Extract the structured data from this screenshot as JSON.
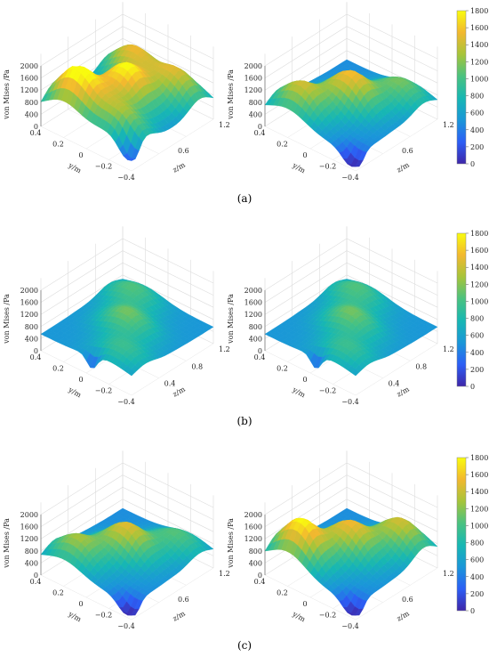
{
  "chart_data": [
    {
      "type": "surface",
      "panel": "a",
      "position": "left",
      "xlabel": "y/m",
      "ylabel": "z/m",
      "zlabel": "von Mises /Pa",
      "xticks": [
        "0.4",
        "0.2",
        "0",
        "−0.2",
        "−0.4"
      ],
      "yticks": [
        "0.6",
        "1.2"
      ],
      "zticks": [
        "0",
        "400",
        "800",
        "1200",
        "1600",
        "2000"
      ],
      "zlim": [
        0,
        2000
      ],
      "peaks": [
        {
          "y": 0.0,
          "z": 0.6,
          "vm": 1850
        },
        {
          "y": -0.2,
          "z": 1.0,
          "vm": 1500
        },
        {
          "y": 0.2,
          "z": 1.0,
          "vm": 1550
        },
        {
          "y": 0.2,
          "z": 0.2,
          "vm": 2000
        },
        {
          "y": -0.2,
          "z": 0.2,
          "vm": 1300
        }
      ]
    },
    {
      "type": "surface",
      "panel": "a",
      "position": "right",
      "xlabel": "y/m",
      "ylabel": "z/m",
      "zlabel": "von Mises /Pa",
      "xticks": [
        "0.4",
        "0.2",
        "0",
        "−0.2",
        "−0.4"
      ],
      "yticks": [
        "0.6",
        "1.2"
      ],
      "zticks": [
        "0",
        "400",
        "800",
        "1200",
        "1600",
        "2000"
      ],
      "zlim": [
        0,
        2000
      ],
      "peaks": [
        {
          "y": 0.0,
          "z": 0.6,
          "vm": 1650
        },
        {
          "y": 0.2,
          "z": 0.2,
          "vm": 1500
        },
        {
          "y": -0.2,
          "z": 1.0,
          "vm": 1200
        }
      ]
    },
    {
      "type": "surface",
      "panel": "b",
      "position": "left",
      "xlabel": "y/m",
      "ylabel": "z/m",
      "zlabel": "von Mises /Pa",
      "xticks": [
        "0.4",
        "0.2",
        "0",
        "−0.2",
        "−0.4"
      ],
      "yticks": [
        "0.4",
        "0.8",
        "1.2"
      ],
      "zticks": [
        "0",
        "400",
        "800",
        "1200",
        "1600",
        "2000"
      ],
      "zlim": [
        0,
        2000
      ],
      "peaks": [
        {
          "y": 0.0,
          "z": 0.6,
          "vm": 1200
        },
        {
          "y": 0.2,
          "z": 1.0,
          "vm": 1100
        },
        {
          "y": -0.2,
          "z": 0.2,
          "vm": 1000
        }
      ]
    },
    {
      "type": "surface",
      "panel": "b",
      "position": "right",
      "xlabel": "y/m",
      "ylabel": "z/m",
      "zlabel": "von Mises /Pa",
      "xticks": [
        "0.4",
        "0.2",
        "0",
        "−0.2",
        "−0.4"
      ],
      "yticks": [
        "0.4",
        "0.8",
        "1.2"
      ],
      "zticks": [
        "0",
        "400",
        "800",
        "1200",
        "1600",
        "2000"
      ],
      "zlim": [
        0,
        2000
      ],
      "peaks": [
        {
          "y": 0.0,
          "z": 0.6,
          "vm": 1200
        },
        {
          "y": 0.2,
          "z": 1.0,
          "vm": 1100
        },
        {
          "y": -0.2,
          "z": 0.2,
          "vm": 1000
        }
      ]
    },
    {
      "type": "surface",
      "panel": "c",
      "position": "left",
      "xlabel": "y/m",
      "ylabel": "z/m",
      "zlabel": "von Mises /Pa",
      "xticks": [
        "0.4",
        "0.2",
        "0",
        "−0.2",
        "−0.4"
      ],
      "yticks": [
        "0.6",
        "1.2"
      ],
      "zticks": [
        "0",
        "400",
        "800",
        "1200",
        "1600",
        "2000"
      ],
      "zlim": [
        0,
        2000
      ],
      "peaks": [
        {
          "y": 0.0,
          "z": 0.6,
          "vm": 1550
        },
        {
          "y": 0.2,
          "z": 0.2,
          "vm": 1350
        },
        {
          "y": -0.2,
          "z": 1.0,
          "vm": 1100
        }
      ]
    },
    {
      "type": "surface",
      "panel": "c",
      "position": "right",
      "xlabel": "y/m",
      "ylabel": "z/m",
      "zlabel": "von Mises /Pa",
      "xticks": [
        "0.4",
        "0.2",
        "0",
        "−0.2",
        "−0.4"
      ],
      "yticks": [
        "0.6",
        "1.2"
      ],
      "zticks": [
        "0",
        "400",
        "800",
        "1200",
        "1600",
        "2000"
      ],
      "zlim": [
        0,
        2000
      ],
      "peaks": [
        {
          "y": 0.2,
          "z": 0.2,
          "vm": 1900
        },
        {
          "y": 0.0,
          "z": 0.6,
          "vm": 1600
        },
        {
          "y": -0.2,
          "z": 1.0,
          "vm": 1500
        }
      ]
    }
  ],
  "colorbar": {
    "ticks": [
      "1800",
      "1600",
      "1400",
      "1200",
      "1000",
      "800",
      "600",
      "400",
      "200",
      "0"
    ],
    "range": [
      0,
      1800
    ],
    "colormap": [
      "#3e26a8",
      "#2c5ef5",
      "#1a97d8",
      "#17b7b3",
      "#4ac280",
      "#a6c43a",
      "#f2b82f",
      "#f9fb0e"
    ]
  },
  "captions": [
    "(a)",
    "(b)",
    "(c)"
  ]
}
